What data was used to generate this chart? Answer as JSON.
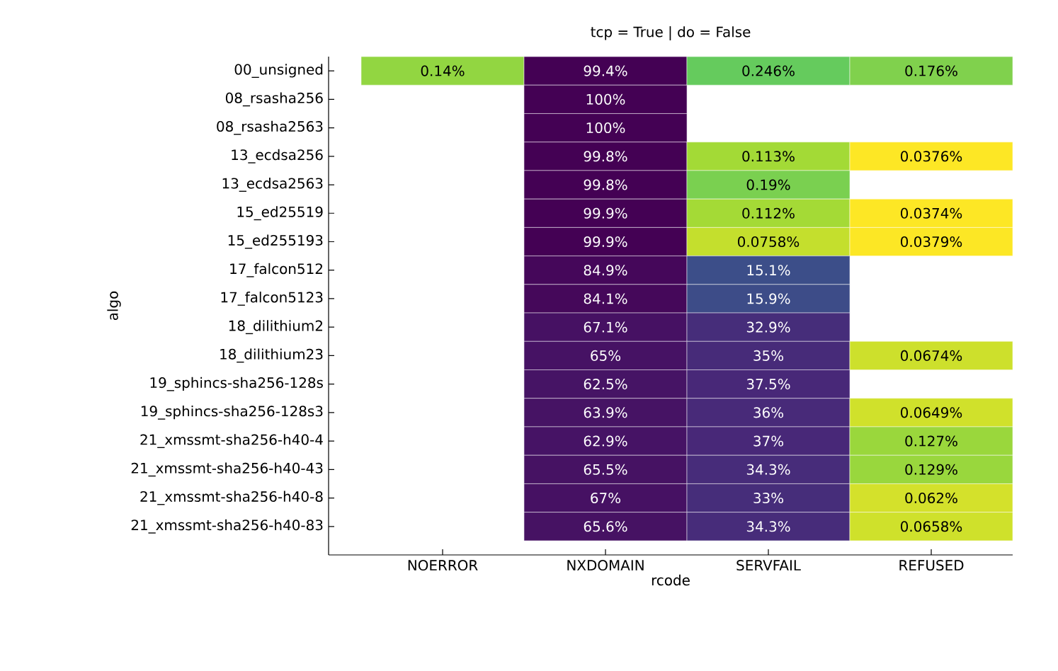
{
  "chart_data": {
    "type": "heatmap",
    "title": "tcp = True | do = False",
    "xlabel": "rcode",
    "ylabel": "algo",
    "categories": [
      "NOERROR",
      "NXDOMAIN",
      "SERVFAIL",
      "REFUSED"
    ],
    "y_categories": [
      "00_unsigned",
      "08_rsasha256",
      "08_rsasha2563",
      "13_ecdsa256",
      "13_ecdsa2563",
      "15_ed25519",
      "15_ed255193",
      "17_falcon512",
      "17_falcon5123",
      "18_dilithium2",
      "18_dilithium23",
      "19_sphincs-sha256-128s",
      "19_sphincs-sha256-128s3",
      "21_xmssmt-sha256-h40-4",
      "21_xmssmt-sha256-h40-43",
      "21_xmssmt-sha256-h40-8",
      "21_xmssmt-sha256-h40-83"
    ],
    "cells": [
      [
        0.14,
        99.4,
        0.246,
        0.176
      ],
      [
        null,
        100,
        null,
        null
      ],
      [
        null,
        100,
        null,
        null
      ],
      [
        null,
        99.8,
        0.113,
        0.0376
      ],
      [
        null,
        99.8,
        0.19,
        null
      ],
      [
        null,
        99.9,
        0.112,
        0.0374
      ],
      [
        null,
        99.9,
        0.0758,
        0.0379
      ],
      [
        null,
        84.9,
        15.1,
        null
      ],
      [
        null,
        84.1,
        15.9,
        null
      ],
      [
        null,
        67.1,
        32.9,
        null
      ],
      [
        null,
        65,
        35,
        0.0674
      ],
      [
        null,
        62.5,
        37.5,
        null
      ],
      [
        null,
        63.9,
        36,
        0.0649
      ],
      [
        null,
        62.9,
        37,
        0.127
      ],
      [
        null,
        65.5,
        34.3,
        0.129
      ],
      [
        null,
        67,
        33,
        0.062
      ],
      [
        null,
        65.6,
        34.3,
        0.0658
      ]
    ],
    "cell_labels": [
      [
        "0.14%",
        "99.4%",
        "0.246%",
        "0.176%"
      ],
      [
        null,
        "100%",
        null,
        null
      ],
      [
        null,
        "100%",
        null,
        null
      ],
      [
        null,
        "99.8%",
        "0.113%",
        "0.0376%"
      ],
      [
        null,
        "99.8%",
        "0.19%",
        null
      ],
      [
        null,
        "99.9%",
        "0.112%",
        "0.0374%"
      ],
      [
        null,
        "99.9%",
        "0.0758%",
        "0.0379%"
      ],
      [
        null,
        "84.9%",
        "15.1%",
        null
      ],
      [
        null,
        "84.1%",
        "15.9%",
        null
      ],
      [
        null,
        "67.1%",
        "32.9%",
        null
      ],
      [
        null,
        "65%",
        "35%",
        "0.0674%"
      ],
      [
        null,
        "62.5%",
        "37.5%",
        null
      ],
      [
        null,
        "63.9%",
        "36%",
        "0.0649%"
      ],
      [
        null,
        "62.9%",
        "37%",
        "0.127%"
      ],
      [
        null,
        "65.5%",
        "34.3%",
        "0.129%"
      ],
      [
        null,
        "67%",
        "33%",
        "0.062%"
      ],
      [
        null,
        "65.6%",
        "34.3%",
        "0.0658%"
      ]
    ]
  }
}
